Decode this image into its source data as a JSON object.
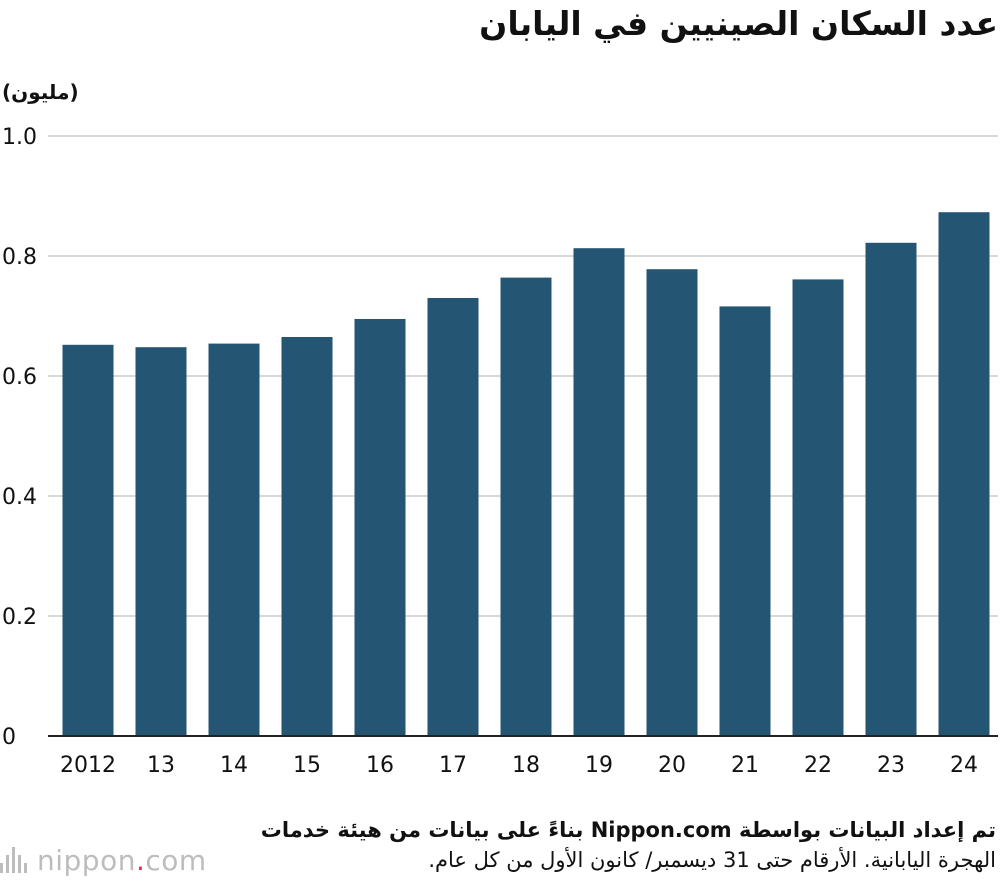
{
  "title": "عدد السكان الصينيين في اليابان",
  "unit_label": "(مليون)",
  "footer": {
    "line1": "تم إعداد البيانات بواسطة Nippon.com بناءً على بيانات من هيئة خدمات",
    "line2": "الهجرة اليابانية. الأرقام حتى 31 ديسمبر/ كانون الأول من كل عام."
  },
  "brand": {
    "name": "nippon",
    "dot": ".",
    "suffix": "com"
  },
  "colors": {
    "bar": "#245572",
    "grid": "#cccccc",
    "axis": "#222222",
    "brand_accent": "#e8333f"
  },
  "chart_data": {
    "type": "bar",
    "title": "عدد السكان الصينيين في اليابان",
    "ylabel": "(مليون)",
    "xlabel": "",
    "categories": [
      "2012",
      "13",
      "14",
      "15",
      "16",
      "17",
      "18",
      "19",
      "20",
      "21",
      "22",
      "23",
      "24"
    ],
    "values": [
      0.652,
      0.648,
      0.654,
      0.665,
      0.695,
      0.73,
      0.764,
      0.813,
      0.778,
      0.716,
      0.761,
      0.822,
      0.873
    ],
    "ylim": [
      0,
      1.0
    ],
    "yticks": [
      0,
      0.2,
      0.4,
      0.6,
      0.8,
      1.0
    ],
    "ytick_labels": [
      "0",
      "0.2",
      "0.4",
      "0.6",
      "0.8",
      "1.0"
    ],
    "grid": true,
    "legend": "none"
  }
}
